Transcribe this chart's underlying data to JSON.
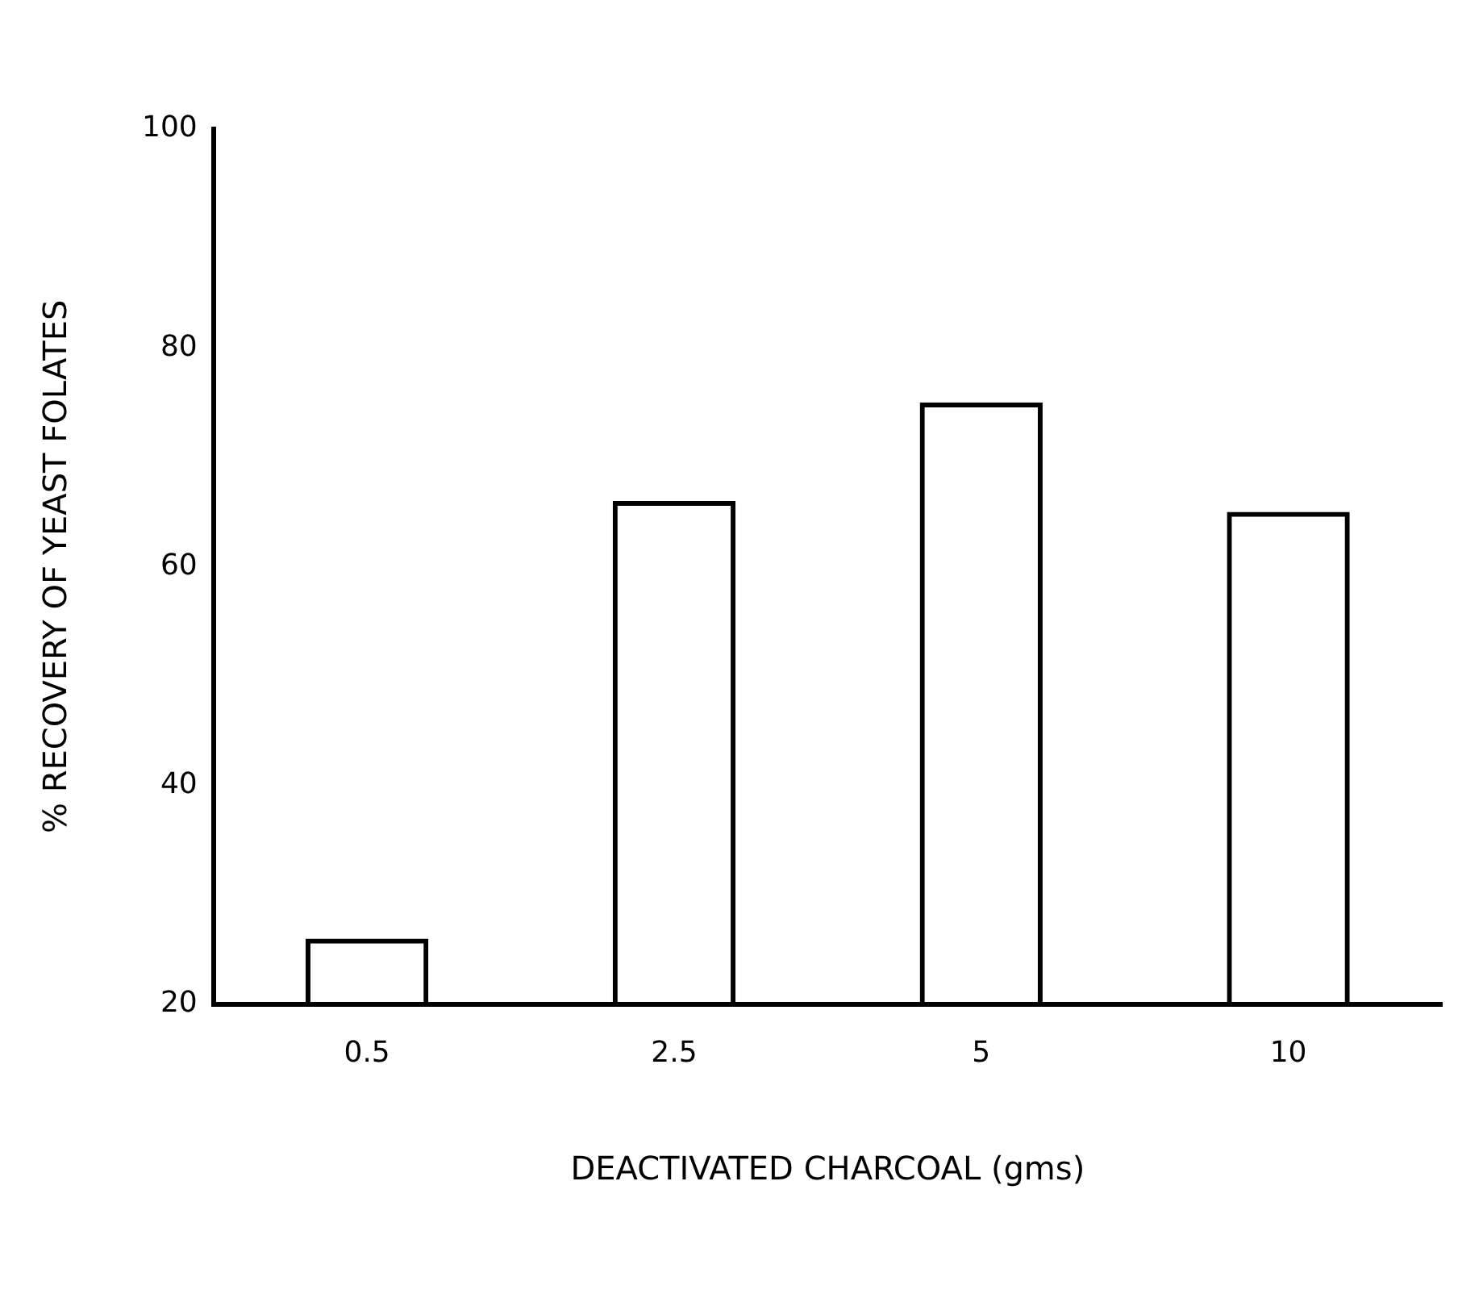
{
  "chart_data": {
    "type": "bar",
    "xlabel": "DEACTIVATED CHARCOAL (gms)",
    "ylabel": "% RECOVERY OF YEAST FOLATES",
    "categories": [
      "0.5",
      "2.5",
      "5",
      "10"
    ],
    "values": [
      26,
      66,
      75,
      65
    ],
    "color": "#000000",
    "ylim": [
      20,
      100
    ],
    "yticks": [
      20,
      40,
      60,
      80,
      100
    ],
    "grid": false,
    "legend": false
  }
}
